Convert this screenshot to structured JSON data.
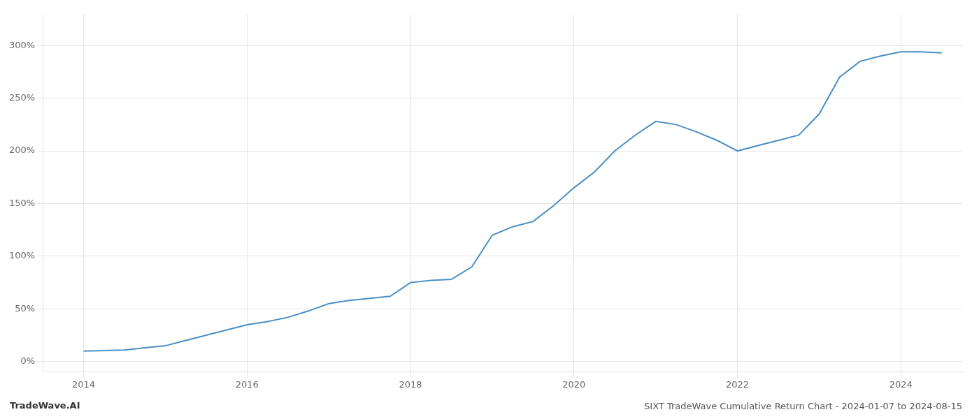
{
  "chart_data": {
    "type": "line",
    "title": "SIXT TradeWave Cumulative Return Chart - 2024-01-07 to 2024-08-15",
    "annotations": [
      "TradeWave.AI"
    ],
    "color": "#4a90c4",
    "x": [
      2014.0,
      2014.25,
      2014.5,
      2014.75,
      2015.0,
      2015.25,
      2015.5,
      2015.75,
      2016.0,
      2016.25,
      2016.5,
      2016.75,
      2017.0,
      2017.25,
      2017.5,
      2017.75,
      2018.0,
      2018.25,
      2018.5,
      2018.75,
      2019.0,
      2019.25,
      2019.5,
      2019.75,
      2020.0,
      2020.25,
      2020.5,
      2020.75,
      2021.0,
      2021.25,
      2021.5,
      2021.75,
      2022.0,
      2022.25,
      2022.5,
      2022.75,
      2023.0,
      2023.25,
      2023.5,
      2023.75,
      2024.0,
      2024.25,
      2024.5
    ],
    "values": [
      10,
      10.5,
      11,
      13,
      15,
      20,
      25,
      30,
      35,
      38,
      42,
      48,
      55,
      58,
      60,
      62,
      75,
      77,
      78,
      90,
      120,
      128,
      133,
      148,
      165,
      180,
      200,
      215,
      228,
      225,
      218,
      210,
      200,
      205,
      210,
      215,
      235,
      270,
      285,
      290,
      294,
      294,
      293
    ],
    "xlim": [
      2013.5,
      2024.75
    ],
    "xticks": [
      2014,
      2016,
      2018,
      2020,
      2022,
      2024
    ],
    "ylim": [
      -10,
      330
    ],
    "yticks": [
      {
        "value": 0,
        "label": "0%"
      },
      {
        "value": 50,
        "label": "50%"
      },
      {
        "value": 100,
        "label": "100%"
      },
      {
        "value": 150,
        "label": "150%"
      },
      {
        "value": 200,
        "label": "200%"
      },
      {
        "value": 250,
        "label": "250%"
      },
      {
        "value": 300,
        "label": "300%"
      }
    ],
    "grid": true
  }
}
